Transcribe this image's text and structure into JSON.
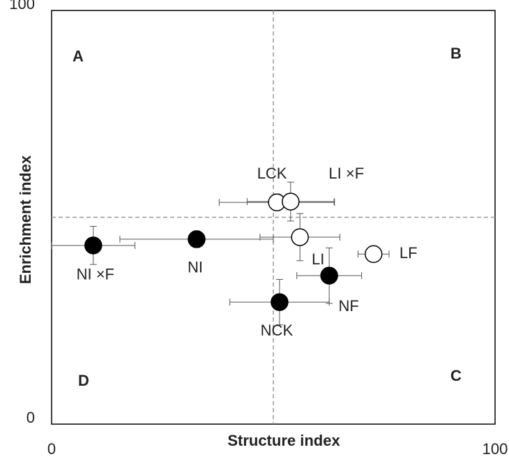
{
  "chart_data": {
    "type": "scatter",
    "xlabel": "Structure index",
    "ylabel": "Enrichment index",
    "xlim": [
      0,
      100
    ],
    "ylim": [
      0,
      100
    ],
    "xticks": [
      0,
      100
    ],
    "yticks": [
      0,
      100
    ],
    "xref": 50,
    "yref": 50,
    "annotations": [
      "A",
      "B",
      "C",
      "D"
    ],
    "points": [
      {
        "label": "NI ×F",
        "x": 9.4,
        "y": 43.2,
        "xerr": 9.4,
        "yerr": 4.6,
        "color": "#000000"
      },
      {
        "label": "NI",
        "x": 32.7,
        "y": 44.7,
        "xerr": 17.3,
        "yerr": 2,
        "color": "#000000"
      },
      {
        "label": "LCK",
        "x": 50.8,
        "y": 53.6,
        "xerr": 13,
        "yerr": 2,
        "color": "#ffffff"
      },
      {
        "label": "LI ×F",
        "x": 53.9,
        "y": 53.8,
        "xerr": 9.8,
        "yerr": 4.7,
        "color": "#ffffff"
      },
      {
        "label": "LI",
        "x": 56,
        "y": 45.2,
        "xerr": 9,
        "yerr": 5.7,
        "color": "#ffffff"
      },
      {
        "label": "LF",
        "x": 72.6,
        "y": 41.1,
        "xerr": 3.5,
        "yerr": 1.5,
        "color": "#ffffff"
      },
      {
        "label": "NF",
        "x": 62.6,
        "y": 35.9,
        "xerr": 7.3,
        "yerr": 6.7,
        "color": "#000000"
      },
      {
        "label": "NCK",
        "x": 51.4,
        "y": 29.5,
        "xerr": 11.2,
        "yerr": 5.5,
        "color": "#000000"
      }
    ]
  }
}
